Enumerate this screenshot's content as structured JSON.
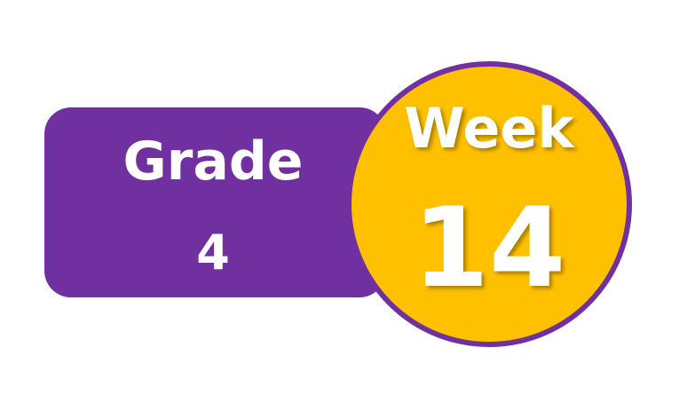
{
  "grade": {
    "label": "Grade",
    "number": "4"
  },
  "week": {
    "label": "Week",
    "number": "14"
  },
  "colors": {
    "purple": "#7030A0",
    "gold": "#FFC000",
    "text": "#FFFFFF"
  }
}
